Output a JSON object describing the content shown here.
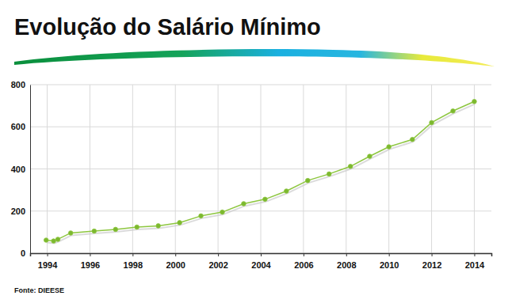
{
  "chart_data": {
    "type": "line",
    "title": "Evolução do Salário Mínimo",
    "source": "Fonte: DIEESE",
    "x": [
      1993.95,
      1994.3,
      1994.5,
      1995.1,
      1996.2,
      1997.2,
      1998.2,
      1999.2,
      2000.2,
      2001.2,
      2002.2,
      2003.2,
      2004.2,
      2005.2,
      2006.2,
      2007.2,
      2008.2,
      2009.1,
      2010.0,
      2011.1,
      2012.0,
      2013.0,
      2014.0
    ],
    "values": [
      62,
      58,
      66,
      96,
      105,
      113,
      124,
      130,
      145,
      177,
      195,
      235,
      256,
      295,
      345,
      376,
      412,
      460,
      505,
      540,
      620,
      675,
      720
    ],
    "color": "#8dc63f",
    "marker": "circle",
    "xlim": [
      1993.2,
      2014.8
    ],
    "xticks": [
      1994,
      1996,
      1998,
      2000,
      2002,
      2004,
      2006,
      2008,
      2010,
      2012,
      2014
    ],
    "ylim": [
      0,
      800
    ],
    "yticks": [
      0,
      200,
      400,
      600,
      800
    ],
    "grid": true
  }
}
